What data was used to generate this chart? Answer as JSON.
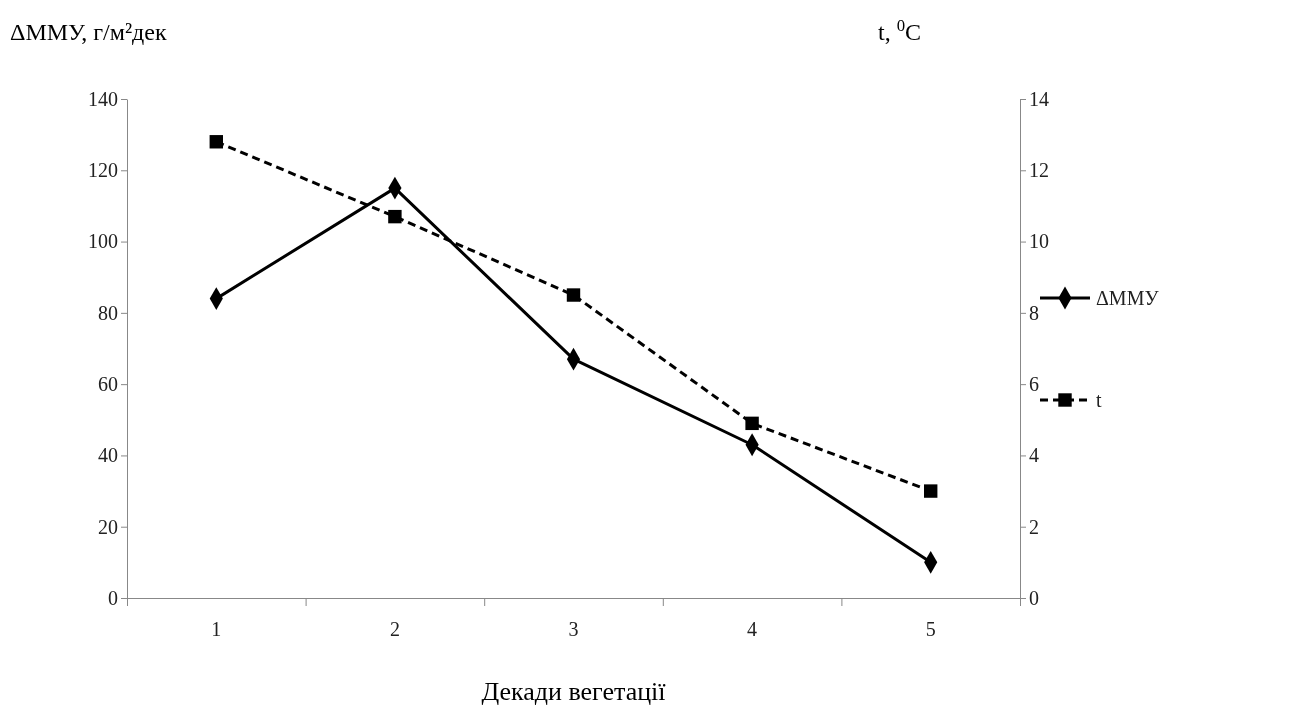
{
  "chart_data": {
    "type": "line",
    "xlabel": "Декади вегетації",
    "ylabel": "ΔММУ, г/м²дек",
    "y2label": "t, $^{0}$C",
    "categories": [
      "1",
      "2",
      "3",
      "4",
      "5"
    ],
    "series": [
      {
        "name": "ΔММУ",
        "color": "#000000",
        "values": [
          84,
          115,
          67,
          43,
          10
        ],
        "marker": "diamond",
        "line_style": "solid"
      },
      {
        "name": "t",
        "color": "#000000",
        "values": [
          12.8,
          10.7,
          8.5,
          4.9,
          3.0
        ],
        "axis": "y2",
        "marker": "square",
        "line_style": "dashed"
      }
    ],
    "ylim": [
      0,
      140
    ],
    "yticks": [
      0,
      20,
      40,
      60,
      80,
      100,
      120,
      140
    ],
    "y2lim": [
      0,
      14
    ],
    "y2ticks": [
      0,
      2,
      4,
      6,
      8,
      10,
      12,
      14
    ],
    "grid": false,
    "legend": "right"
  }
}
